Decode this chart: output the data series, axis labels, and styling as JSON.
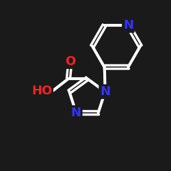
{
  "background_color": "#1a1a1a",
  "atom_color_N": "#3333ff",
  "atom_color_O": "#ff2020",
  "bond_color": "#ffffff",
  "bond_width": 3.0,
  "figsize": [
    2.5,
    2.5
  ],
  "dpi": 100,
  "xlim": [
    0.0,
    10.0
  ],
  "ylim": [
    0.5,
    10.5
  ]
}
